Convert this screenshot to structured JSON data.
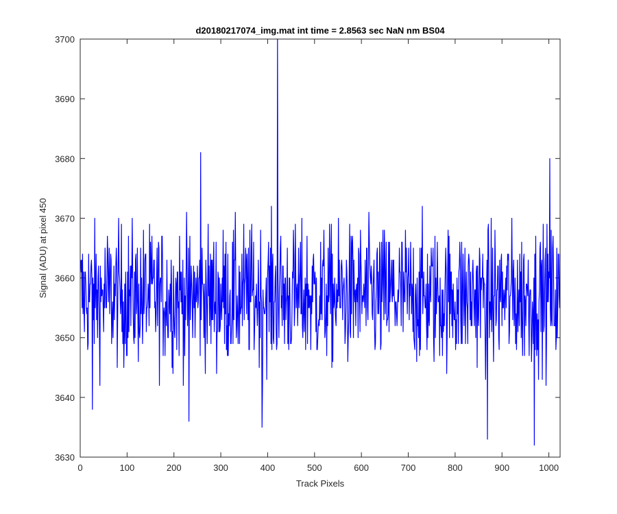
{
  "chart_data": {
    "type": "line",
    "title": "d20180217074_img.mat int time = 2.8563 sec  NaN nm BS04",
    "xlabel": "Track Pixels",
    "ylabel": "Signal (ADU) at pixel 450",
    "xlim": [
      0,
      1024
    ],
    "ylim": [
      3630,
      3700
    ],
    "xticks": [
      0,
      100,
      200,
      300,
      400,
      500,
      600,
      700,
      800,
      900,
      1000
    ],
    "yticks": [
      3630,
      3640,
      3650,
      3660,
      3670,
      3680,
      3690,
      3700
    ],
    "grid": false,
    "line_color": "#0000ff",
    "series": [
      {
        "color": "#0000ff",
        "summary": {
          "x_start": 1,
          "x_end": 1024,
          "approx_mean": 3657,
          "approx_min": 3632,
          "approx_max": 3700
        },
        "notable_points": [
          {
            "x": 26,
            "y": 3638
          },
          {
            "x": 232,
            "y": 3636
          },
          {
            "x": 257,
            "y": 3681
          },
          {
            "x": 388,
            "y": 3635
          },
          {
            "x": 421,
            "y": 3700
          },
          {
            "x": 869,
            "y": 3633
          },
          {
            "x": 969,
            "y": 3632
          },
          {
            "x": 1002,
            "y": 3680
          }
        ]
      }
    ]
  }
}
